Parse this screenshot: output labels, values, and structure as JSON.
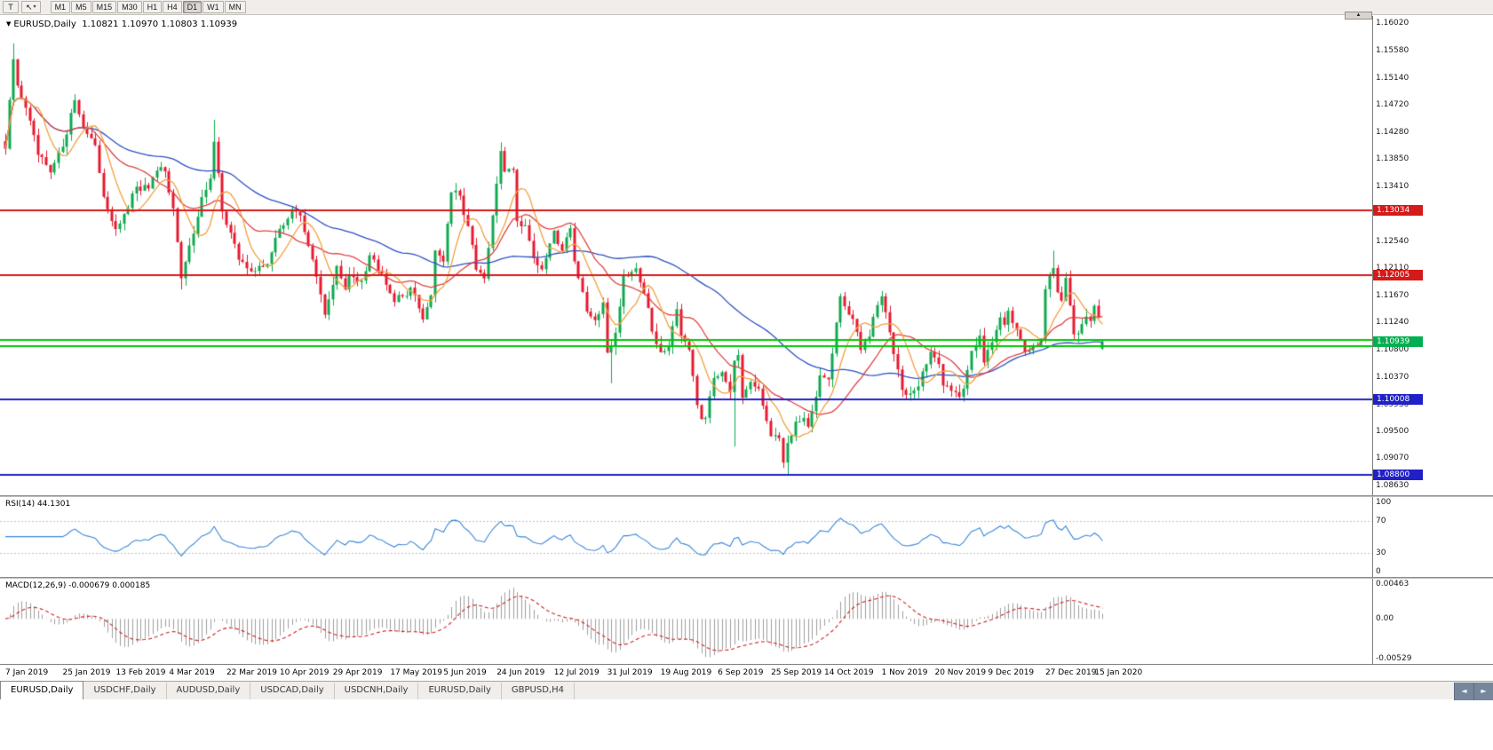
{
  "icons": {
    "chart_dropdown": "▼",
    "scroll_up": "▲",
    "tab_scroll_left": "◄",
    "tab_scroll_right": "►",
    "cursor_tool": "↖",
    "dropdown_small": "▾"
  },
  "toolbar": {
    "pointer_tool_label": "T",
    "timeframes": [
      "M1",
      "M5",
      "M15",
      "M30",
      "H1",
      "H4",
      "D1",
      "W1",
      "MN"
    ],
    "active_timeframe": "D1"
  },
  "chart": {
    "title_symbol": "EURUSD,Daily",
    "title_ohlc": "1.10821 1.10970 1.10803 1.10939"
  },
  "indicators": {
    "rsi_label": "RSI(14) 44.1301",
    "macd_label": "MACD(12,26,9) -0.000679 0.000185"
  },
  "tabs": {
    "items": [
      {
        "label": "EURUSD,Daily",
        "active": true
      },
      {
        "label": "USDCHF,Daily",
        "active": false
      },
      {
        "label": "AUDUSD,Daily",
        "active": false
      },
      {
        "label": "USDCAD,Daily",
        "active": false
      },
      {
        "label": "USDCNH,Daily",
        "active": false
      },
      {
        "label": "EURUSD,Daily",
        "active": false
      },
      {
        "label": "GBPUSD,H4",
        "active": false
      }
    ]
  },
  "chart_data": {
    "type": "candlestick",
    "symbol": "EURUSD",
    "timeframe": "Daily",
    "current_bar": {
      "open": 1.10821,
      "high": 1.1097,
      "low": 1.10803,
      "close": 1.10939
    },
    "bull_color": "#0EA84E",
    "bear_color": "#E6192E",
    "candle_count": 269,
    "price_axis": {
      "min": 1.0848,
      "max": 1.1614,
      "ticks": [
        "1.16020",
        "1.15580",
        "1.15140",
        "1.14720",
        "1.14280",
        "1.13850",
        "1.13410",
        "1.12980",
        "1.12540",
        "1.12110",
        "1.11670",
        "1.11240",
        "1.10800",
        "1.10370",
        "1.09930",
        "1.09500",
        "1.09070",
        "1.08630"
      ]
    },
    "close_anchors": [
      [
        0,
        1.1402
      ],
      [
        2,
        1.1545
      ],
      [
        3,
        1.1502
      ],
      [
        5,
        1.1468
      ],
      [
        8,
        1.1392
      ],
      [
        11,
        1.1363
      ],
      [
        14,
        1.1406
      ],
      [
        17,
        1.148
      ],
      [
        19,
        1.1436
      ],
      [
        22,
        1.1406
      ],
      [
        24,
        1.1326
      ],
      [
        27,
        1.1272
      ],
      [
        29,
        1.1296
      ],
      [
        32,
        1.134
      ],
      [
        35,
        1.1338
      ],
      [
        38,
        1.1372
      ],
      [
        39,
        1.1365
      ],
      [
        41,
        1.1308
      ],
      [
        43,
        1.1194
      ],
      [
        45,
        1.1246
      ],
      [
        48,
        1.1324
      ],
      [
        50,
        1.1354
      ],
      [
        51,
        1.1412
      ],
      [
        53,
        1.1302
      ],
      [
        55,
        1.1268
      ],
      [
        57,
        1.1224
      ],
      [
        61,
        1.1206
      ],
      [
        64,
        1.1218
      ],
      [
        67,
        1.1274
      ],
      [
        70,
        1.1304
      ],
      [
        72,
        1.1296
      ],
      [
        75,
        1.1224
      ],
      [
        78,
        1.1136
      ],
      [
        81,
        1.1214
      ],
      [
        83,
        1.1176
      ],
      [
        84,
        1.12
      ],
      [
        87,
        1.1192
      ],
      [
        89,
        1.1232
      ],
      [
        92,
        1.1204
      ],
      [
        95,
        1.1158
      ],
      [
        97,
        1.1166
      ],
      [
        99,
        1.118
      ],
      [
        102,
        1.113
      ],
      [
        104,
        1.1168
      ],
      [
        105,
        1.124
      ],
      [
        107,
        1.1222
      ],
      [
        109,
        1.1332
      ],
      [
        111,
        1.1326
      ],
      [
        113,
        1.1278
      ],
      [
        115,
        1.1208
      ],
      [
        117,
        1.1194
      ],
      [
        119,
        1.1294
      ],
      [
        121,
        1.1399
      ],
      [
        122,
        1.1366
      ],
      [
        124,
        1.1369
      ],
      [
        125,
        1.1286
      ],
      [
        127,
        1.128
      ],
      [
        129,
        1.1228
      ],
      [
        131,
        1.1208
      ],
      [
        134,
        1.127
      ],
      [
        136,
        1.124
      ],
      [
        138,
        1.1276
      ],
      [
        139,
        1.1222
      ],
      [
        142,
        1.114
      ],
      [
        144,
        1.1128
      ],
      [
        146,
        1.1155
      ],
      [
        147,
        1.1076
      ],
      [
        148,
        1.1086
      ],
      [
        149,
        1.1108
      ],
      [
        151,
        1.12
      ],
      [
        154,
        1.1212
      ],
      [
        156,
        1.1172
      ],
      [
        158,
        1.111
      ],
      [
        160,
        1.1078
      ],
      [
        162,
        1.1086
      ],
      [
        164,
        1.1144
      ],
      [
        165,
        1.1102
      ],
      [
        167,
        1.108
      ],
      [
        169,
        1.0992
      ],
      [
        170,
        1.097
      ],
      [
        171,
        1.0972
      ],
      [
        173,
        1.1034
      ],
      [
        175,
        1.1046
      ],
      [
        177,
        1.1012
      ],
      [
        178,
        1.1064
      ],
      [
        179,
        1.1072
      ],
      [
        180,
        1.1004
      ],
      [
        182,
        1.103
      ],
      [
        184,
        1.1018
      ],
      [
        185,
        1.0992
      ],
      [
        187,
        1.0942
      ],
      [
        189,
        1.0938
      ],
      [
        190,
        1.09
      ],
      [
        191,
        1.0932
      ],
      [
        193,
        1.0966
      ],
      [
        195,
        1.0972
      ],
      [
        196,
        1.0958
      ],
      [
        198,
        1.1004
      ],
      [
        199,
        1.104
      ],
      [
        201,
        1.1034
      ],
      [
        203,
        1.1124
      ],
      [
        204,
        1.1166
      ],
      [
        205,
        1.115
      ],
      [
        207,
        1.113
      ],
      [
        209,
        1.108
      ],
      [
        211,
        1.1102
      ],
      [
        213,
        1.1152
      ],
      [
        214,
        1.1166
      ],
      [
        216,
        1.1108
      ],
      [
        218,
        1.105
      ],
      [
        219,
        1.1018
      ],
      [
        221,
        1.101
      ],
      [
        223,
        1.1022
      ],
      [
        226,
        1.1078
      ],
      [
        228,
        1.1058
      ],
      [
        229,
        1.1022
      ],
      [
        231,
        1.1016
      ],
      [
        233,
        1.1006
      ],
      [
        234,
        1.1018
      ],
      [
        236,
        1.108
      ],
      [
        238,
        1.1104
      ],
      [
        239,
        1.106
      ],
      [
        241,
        1.1092
      ],
      [
        243,
        1.1132
      ],
      [
        244,
        1.1122
      ],
      [
        245,
        1.1144
      ],
      [
        247,
        1.1112
      ],
      [
        249,
        1.1078
      ],
      [
        251,
        1.1088
      ],
      [
        253,
        1.1098
      ],
      [
        254,
        1.1176
      ],
      [
        255,
        1.1198
      ],
      [
        256,
        1.1212
      ],
      [
        257,
        1.1172
      ],
      [
        258,
        1.116
      ],
      [
        259,
        1.1196
      ],
      [
        260,
        1.1152
      ],
      [
        261,
        1.1104
      ],
      [
        262,
        1.1106
      ],
      [
        263,
        1.1122
      ],
      [
        264,
        1.1134
      ],
      [
        265,
        1.1128
      ],
      [
        266,
        1.115
      ],
      [
        267,
        1.1133
      ],
      [
        268,
        1.10939
      ]
    ],
    "spikes": [
      {
        "i": 2,
        "high": 1.157
      },
      {
        "i": 43,
        "low": 1.1177
      },
      {
        "i": 51,
        "high": 1.1448
      },
      {
        "i": 121,
        "high": 1.1412
      },
      {
        "i": 148,
        "low": 1.1027
      },
      {
        "i": 178,
        "low": 1.0926
      },
      {
        "i": 191,
        "low": 1.0879
      },
      {
        "i": 256,
        "high": 1.1239
      }
    ],
    "levels": [
      {
        "price": 1.13034,
        "color": "#D41A1A",
        "label": "1.13034",
        "width": 2
      },
      {
        "price": 1.12005,
        "color": "#D41A1A",
        "label": "1.12005",
        "width": 2
      },
      {
        "price": 1.10965,
        "color": "#00C800",
        "label": "",
        "width": 2
      },
      {
        "price": 1.1087,
        "color": "#00C800",
        "label": "",
        "width": 2
      },
      {
        "price": 1.10008,
        "color": "#2020C8",
        "label": "1.10008",
        "width": 2
      },
      {
        "price": 1.088,
        "color": "#2020C8",
        "label": "1.08800",
        "width": 2
      }
    ],
    "bid_label": {
      "price": 1.10939,
      "text": "1.10939",
      "color": "#00B050"
    },
    "moving_averages": [
      {
        "period": 55,
        "color": "#2B4FC2"
      },
      {
        "period": 20,
        "color": "#E04040"
      },
      {
        "period": 8,
        "color": "#F0A040"
      }
    ],
    "rsi": {
      "period": 14,
      "value": "44.1301",
      "range": [
        0,
        100
      ],
      "levels": [
        30,
        70
      ],
      "axis_ticks": [
        "100",
        "70",
        "30",
        "0"
      ],
      "color": "#3A87D9"
    },
    "macd": {
      "params": "12,26,9",
      "value": "-0.000679",
      "signal_value": "0.000185",
      "range": [
        -0.0056,
        0.005
      ],
      "axis_ticks": [
        {
          "v": 0.00463,
          "label": "0.00463"
        },
        {
          "v": 0,
          "label": "0.00"
        },
        {
          "v": -0.00529,
          "label": "-0.00529"
        }
      ],
      "bar_color": "#9E9E9E",
      "signal_color": "#CC2020"
    },
    "date_ticks": [
      {
        "i": 0,
        "label": "7 Jan 2019"
      },
      {
        "i": 14,
        "label": "25 Jan 2019"
      },
      {
        "i": 27,
        "label": "13 Feb 2019"
      },
      {
        "i": 40,
        "label": "4 Mar 2019"
      },
      {
        "i": 54,
        "label": "22 Mar 2019"
      },
      {
        "i": 67,
        "label": "10 Apr 2019"
      },
      {
        "i": 80,
        "label": "29 Apr 2019"
      },
      {
        "i": 94,
        "label": "17 May 2019"
      },
      {
        "i": 107,
        "label": "5 Jun 2019"
      },
      {
        "i": 120,
        "label": "24 Jun 2019"
      },
      {
        "i": 134,
        "label": "12 Jul 2019"
      },
      {
        "i": 147,
        "label": "31 Jul 2019"
      },
      {
        "i": 160,
        "label": "19 Aug 2019"
      },
      {
        "i": 174,
        "label": "6 Sep 2019"
      },
      {
        "i": 187,
        "label": "25 Sep 2019"
      },
      {
        "i": 200,
        "label": "14 Oct 2019"
      },
      {
        "i": 214,
        "label": "1 Nov 2019"
      },
      {
        "i": 227,
        "label": "20 Nov 2019"
      },
      {
        "i": 240,
        "label": "9 Dec 2019"
      },
      {
        "i": 254,
        "label": "27 Dec 2019"
      },
      {
        "i": 266,
        "label": "15 Jan 2020"
      }
    ]
  }
}
